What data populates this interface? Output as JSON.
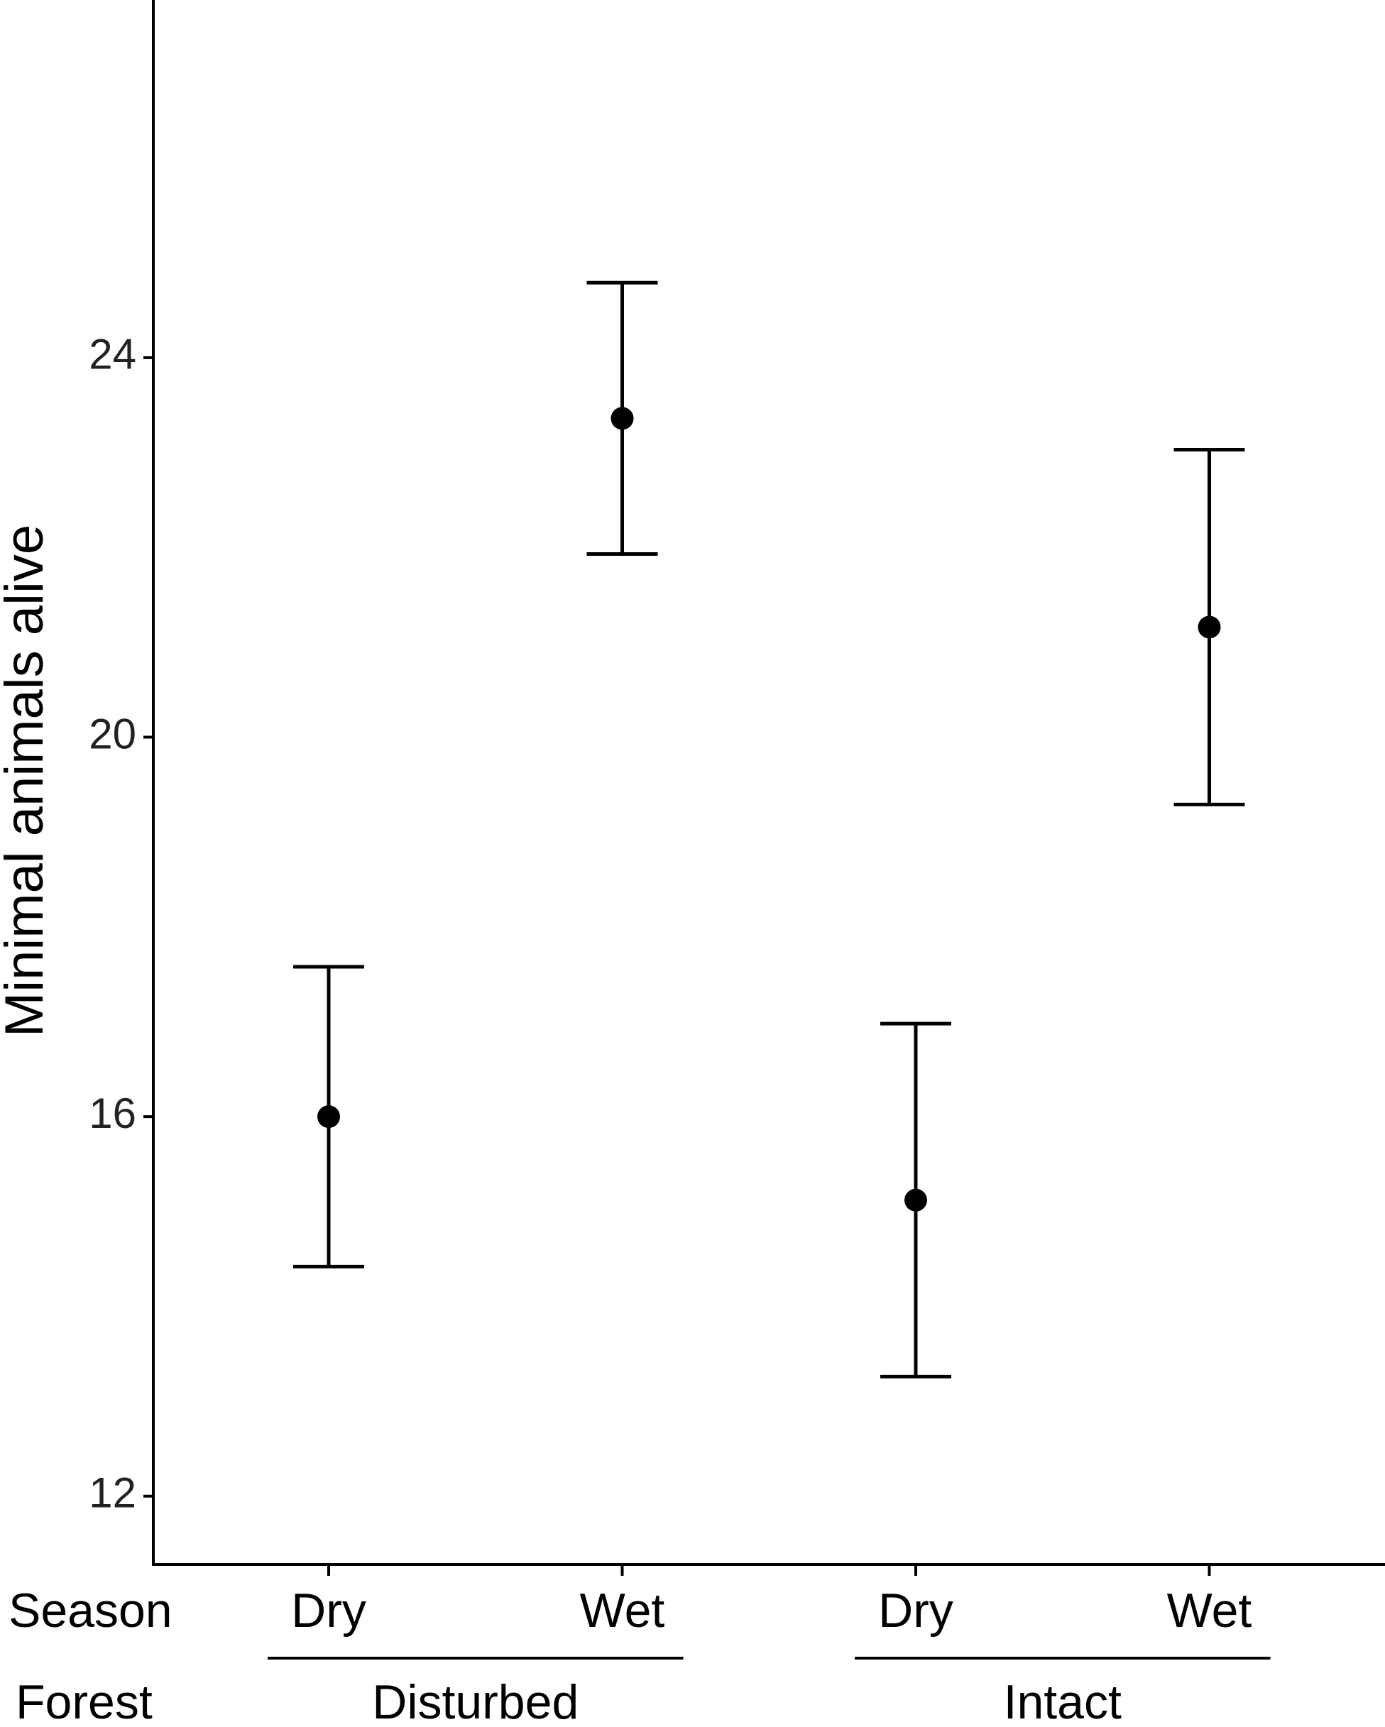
{
  "chart_data": {
    "type": "errorbar",
    "y_label": "Minimal animals alive",
    "row_labels": [
      "Season",
      "Forest"
    ],
    "categories": [
      "Dry",
      "Wet",
      "Dry",
      "Wet"
    ],
    "groups": [
      "Disturbed",
      "Intact"
    ],
    "values": [
      16.0,
      23.36,
      15.12,
      21.16
    ],
    "errors": [
      1.58,
      1.43,
      1.86,
      1.87
    ],
    "color": "#000000",
    "ylim": [
      11.28,
      27.77
    ],
    "yticks": [
      12,
      16,
      20,
      24
    ],
    "grid": false
  }
}
